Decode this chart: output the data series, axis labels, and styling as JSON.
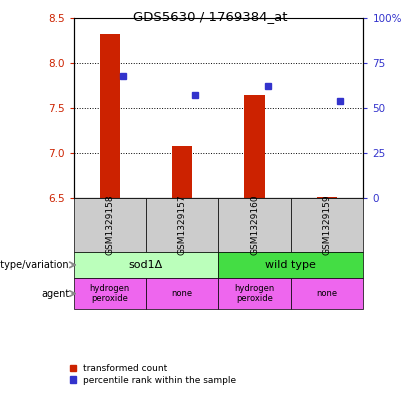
{
  "title": "GDS5630 / 1769384_at",
  "samples": [
    "GSM1329158",
    "GSM1329157",
    "GSM1329160",
    "GSM1329159"
  ],
  "transformed_counts": [
    8.32,
    7.08,
    7.65,
    6.52
  ],
  "percentile_ranks": [
    68,
    57,
    62,
    54
  ],
  "ylim_left": [
    6.5,
    8.5
  ],
  "ylim_right": [
    0,
    100
  ],
  "yticks_left": [
    6.5,
    7.0,
    7.5,
    8.0,
    8.5
  ],
  "yticks_right": [
    0,
    25,
    50,
    75,
    100
  ],
  "bar_color": "#cc2200",
  "dot_color": "#3333cc",
  "bar_bottom": 6.5,
  "genotype_groups": [
    {
      "label": "sod1Δ",
      "samples": [
        0,
        1
      ],
      "color": "#bbffbb"
    },
    {
      "label": "wild type",
      "samples": [
        2,
        3
      ],
      "color": "#44dd44"
    }
  ],
  "agent_groups": [
    {
      "label": "hydrogen\nperoxide",
      "sample": 0,
      "color": "#ee66ee"
    },
    {
      "label": "none",
      "sample": 1,
      "color": "#ee66ee"
    },
    {
      "label": "hydrogen\nperoxide",
      "sample": 2,
      "color": "#ee66ee"
    },
    {
      "label": "none",
      "sample": 3,
      "color": "#ee66ee"
    }
  ],
  "left_label_color": "#cc2200",
  "right_label_color": "#3333cc",
  "legend_items": [
    {
      "label": "transformed count",
      "color": "#cc2200"
    },
    {
      "label": "percentile rank within the sample",
      "color": "#3333cc"
    }
  ],
  "bg_color": "#ffffff",
  "sample_bg_color": "#cccccc"
}
